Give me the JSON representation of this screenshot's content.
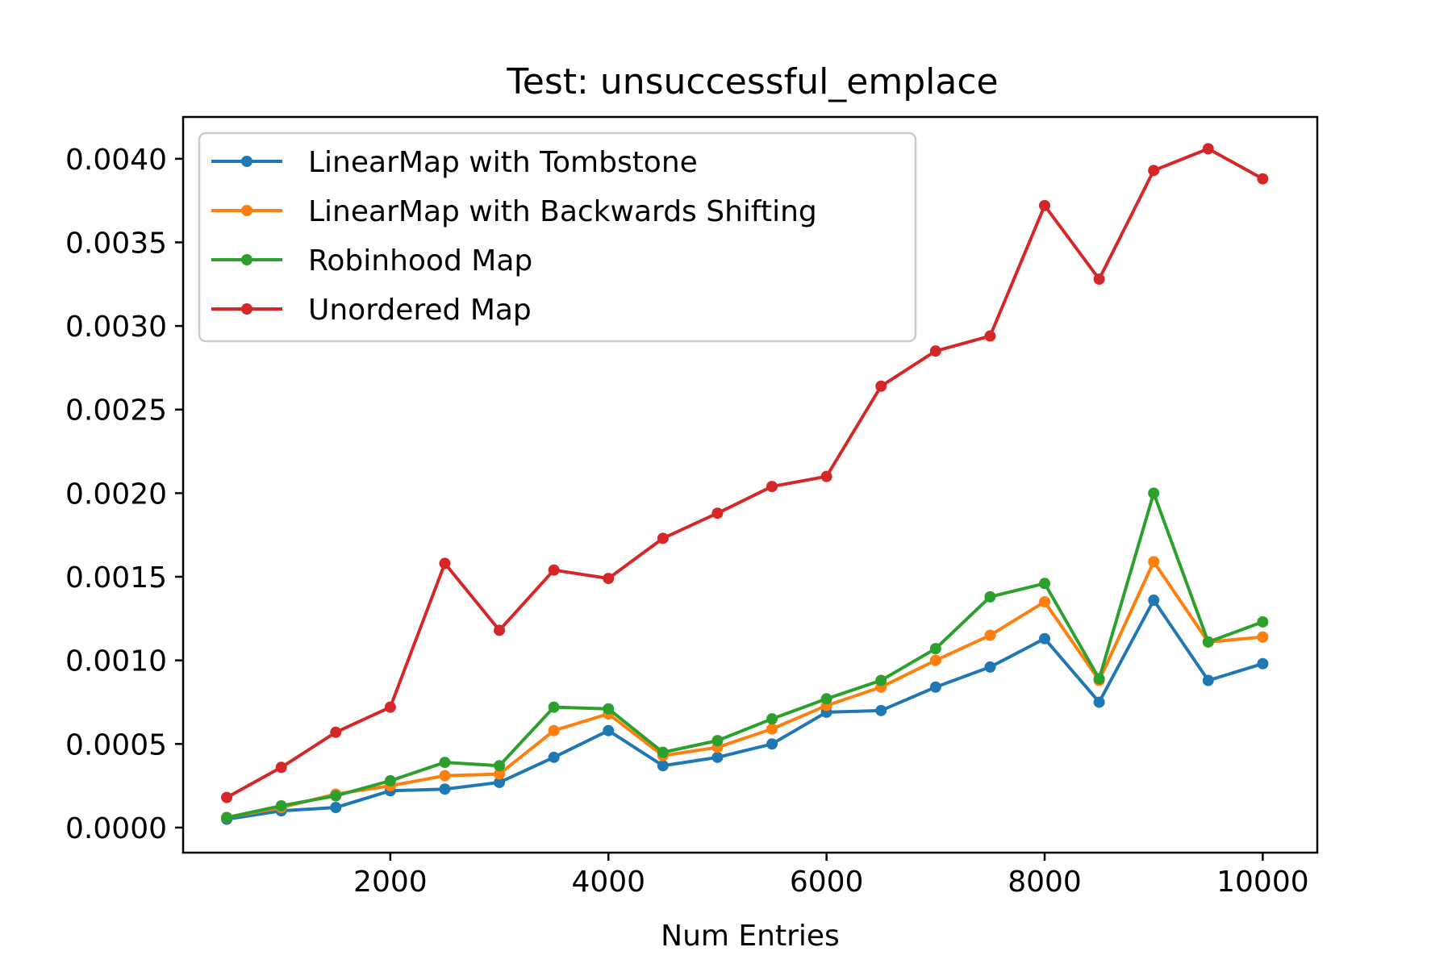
{
  "chart_data": {
    "type": "line",
    "title": "Test: unsuccessful_emplace",
    "xlabel": "Num Entries",
    "ylabel": "",
    "xlim": [
      100,
      10500
    ],
    "ylim": [
      -0.00015,
      0.00425
    ],
    "x": [
      500,
      1000,
      1500,
      2000,
      2500,
      3000,
      3500,
      4000,
      4500,
      5000,
      5500,
      6000,
      6500,
      7000,
      7500,
      8000,
      8500,
      9000,
      9500,
      10000
    ],
    "x_ticks": [
      2000,
      4000,
      6000,
      8000,
      10000
    ],
    "x_tick_labels": [
      "2000",
      "4000",
      "6000",
      "8000",
      "10000"
    ],
    "y_ticks": [
      0.0,
      0.0005,
      0.001,
      0.0015,
      0.002,
      0.0025,
      0.003,
      0.0035,
      0.004
    ],
    "y_tick_labels": [
      "0.0000",
      "0.0005",
      "0.0010",
      "0.0015",
      "0.0020",
      "0.0025",
      "0.0030",
      "0.0035",
      "0.0040"
    ],
    "grid": false,
    "legend_position": "top-left",
    "series": [
      {
        "name": "LinearMap with Tombstone",
        "color": "#1f77b4",
        "values": [
          5e-05,
          0.0001,
          0.00012,
          0.00022,
          0.00023,
          0.00027,
          0.00042,
          0.00058,
          0.00037,
          0.00042,
          0.0005,
          0.00069,
          0.0007,
          0.00084,
          0.00096,
          0.00113,
          0.00075,
          0.00136,
          0.00088,
          0.00098
        ]
      },
      {
        "name": "LinearMap with Backwards Shifting",
        "color": "#ff7f0e",
        "values": [
          6e-05,
          0.00012,
          0.0002,
          0.00025,
          0.00031,
          0.00032,
          0.00058,
          0.00068,
          0.00043,
          0.00048,
          0.00059,
          0.00073,
          0.00084,
          0.001,
          0.00115,
          0.00135,
          0.00088,
          0.00159,
          0.00111,
          0.00114
        ]
      },
      {
        "name": "Robinhood Map",
        "color": "#2ca02c",
        "values": [
          6e-05,
          0.00013,
          0.00019,
          0.00028,
          0.00039,
          0.00037,
          0.00072,
          0.00071,
          0.00045,
          0.00052,
          0.00065,
          0.00077,
          0.00088,
          0.00107,
          0.00138,
          0.00146,
          0.00089,
          0.002,
          0.00111,
          0.00123
        ]
      },
      {
        "name": "Unordered Map",
        "color": "#d62728",
        "values": [
          0.00018,
          0.00036,
          0.00057,
          0.00072,
          0.00158,
          0.00118,
          0.00154,
          0.00149,
          0.00173,
          0.00188,
          0.00204,
          0.0021,
          0.00264,
          0.00285,
          0.00294,
          0.00372,
          0.00328,
          0.00393,
          0.00406,
          0.00388
        ]
      }
    ]
  }
}
